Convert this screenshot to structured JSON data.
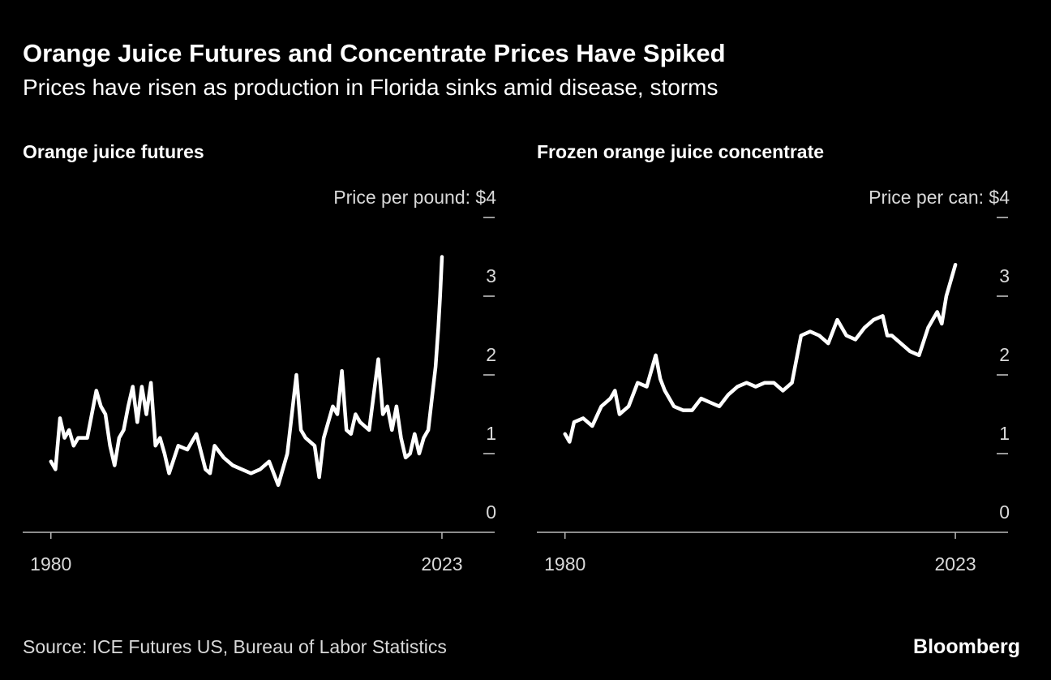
{
  "title": "Orange Juice Futures and Concentrate Prices Have Spiked",
  "subtitle": "Prices have risen as production in Florida sinks amid disease, storms",
  "source": "Source: ICE Futures US, Bureau of Labor Statistics",
  "brand": "Bloomberg",
  "chart_data": [
    {
      "type": "line",
      "title": "Orange juice futures",
      "color": "#ffffff",
      "x": [
        1980,
        1980.5,
        1981,
        1981.5,
        1982,
        1982.5,
        1983,
        1984,
        1985,
        1985.5,
        1986,
        1986.5,
        1987,
        1987.5,
        1988,
        1988.5,
        1989,
        1989.5,
        1990,
        1990.5,
        1991,
        1991.5,
        1992,
        1992.5,
        1993,
        1994,
        1995,
        1996,
        1997,
        1997.5,
        1998,
        1999,
        2000,
        2001,
        2002,
        2003,
        2004,
        2005,
        2006,
        2006.5,
        2007,
        2007.5,
        2008,
        2009,
        2009.5,
        2010,
        2010.5,
        2011,
        2011.5,
        2012,
        2012.5,
        2013,
        2013.5,
        2014,
        2015,
        2016,
        2016.5,
        2017,
        2017.5,
        2018,
        2018.5,
        2019,
        2019.5,
        2020,
        2020.5,
        2021,
        2021.5,
        2022,
        2022.3,
        2022.6,
        2022.8,
        2023
      ],
      "values": [
        0.9,
        0.8,
        1.45,
        1.2,
        1.3,
        1.1,
        1.2,
        1.2,
        1.8,
        1.6,
        1.5,
        1.1,
        0.85,
        1.2,
        1.3,
        1.6,
        1.85,
        1.4,
        1.85,
        1.5,
        1.9,
        1.1,
        1.2,
        1.0,
        0.75,
        1.1,
        1.05,
        1.25,
        0.8,
        0.75,
        1.1,
        0.95,
        0.85,
        0.8,
        0.75,
        0.8,
        0.9,
        0.6,
        1.0,
        1.5,
        2.0,
        1.3,
        1.2,
        1.1,
        0.7,
        1.2,
        1.4,
        1.6,
        1.5,
        2.05,
        1.3,
        1.25,
        1.5,
        1.4,
        1.3,
        2.2,
        1.5,
        1.6,
        1.3,
        1.6,
        1.2,
        0.95,
        1.0,
        1.25,
        1.0,
        1.2,
        1.3,
        1.8,
        2.1,
        2.6,
        3.0,
        3.5
      ],
      "xlim": [
        1976.9,
        2028.8
      ],
      "xticks": [
        1980,
        2023
      ],
      "ylim": [
        0,
        4
      ],
      "yticks": [
        0,
        1,
        2,
        3,
        {
          "value": 4,
          "label": "Price per pound: $4"
        }
      ]
    },
    {
      "type": "line",
      "title": "Frozen orange juice concentrate",
      "color": "#ffffff",
      "x": [
        1980,
        1980.5,
        1981,
        1982,
        1983,
        1984,
        1985,
        1985.5,
        1986,
        1987,
        1988,
        1989,
        1990,
        1990.5,
        1991,
        1992,
        1993,
        1994,
        1995,
        1996,
        1997,
        1998,
        1999,
        2000,
        2001,
        2002,
        2003,
        2004,
        2005,
        2006,
        2007,
        2008,
        2009,
        2010,
        2011,
        2012,
        2013,
        2014,
        2015,
        2015.5,
        2016,
        2017,
        2018,
        2019,
        2020,
        2021,
        2021.5,
        2022,
        2023
      ],
      "values": [
        1.25,
        1.15,
        1.4,
        1.45,
        1.35,
        1.6,
        1.7,
        1.8,
        1.5,
        1.6,
        1.9,
        1.85,
        2.25,
        1.95,
        1.8,
        1.6,
        1.55,
        1.55,
        1.7,
        1.65,
        1.6,
        1.75,
        1.85,
        1.9,
        1.85,
        1.9,
        1.9,
        1.8,
        1.9,
        2.5,
        2.55,
        2.5,
        2.4,
        2.7,
        2.5,
        2.45,
        2.6,
        2.7,
        2.75,
        2.5,
        2.5,
        2.4,
        2.3,
        2.25,
        2.6,
        2.8,
        2.65,
        3.0,
        3.4
      ],
      "xlim": [
        1976.9,
        2028.8
      ],
      "xticks": [
        1980,
        2023
      ],
      "ylim": [
        0,
        4
      ],
      "yticks": [
        0,
        1,
        2,
        3,
        {
          "value": 4,
          "label": "Price per can: $4"
        }
      ]
    }
  ]
}
